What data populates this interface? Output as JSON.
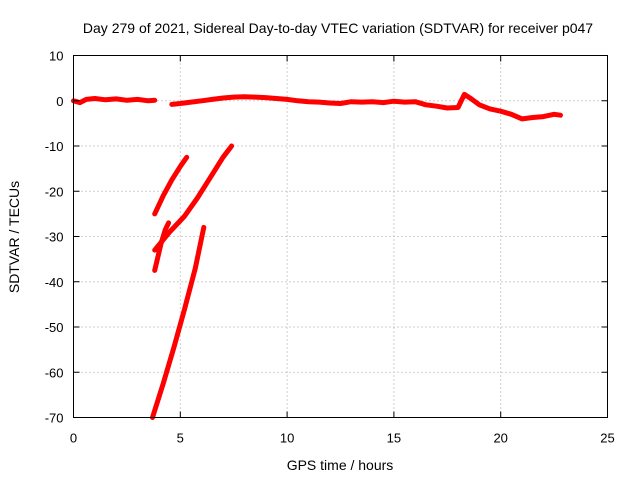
{
  "chart_data": {
    "type": "line",
    "title": "Day 279 of 2021, Sidereal Day-to-day VTEC variation (SDTVAR) for receiver p047",
    "xlabel": "GPS time / hours",
    "ylabel": "SDTVAR / TECUs",
    "xlim": [
      0,
      25
    ],
    "ylim": [
      -70,
      10
    ],
    "xticks": [
      0,
      5,
      10,
      15,
      20,
      25
    ],
    "yticks": [
      10,
      0,
      -10,
      -20,
      -30,
      -40,
      -50,
      -60,
      -70
    ],
    "grid": true,
    "color": "#ff0000",
    "series": [
      {
        "name": "segment-1",
        "x": [
          0,
          0.3,
          0.6,
          1.0,
          1.5,
          2.0,
          2.5,
          3.0,
          3.5,
          3.8
        ],
        "y": [
          0,
          -0.4,
          0.3,
          0.5,
          0.2,
          0.4,
          0.1,
          0.3,
          0.0,
          0.1
        ]
      },
      {
        "name": "segment-2",
        "x": [
          4.6,
          5.0,
          5.5,
          6.0,
          6.5,
          7.0,
          7.5,
          8.0,
          8.5,
          9.0,
          9.5,
          10.0,
          10.5,
          11.0,
          11.5,
          12.0,
          12.5,
          13.0,
          13.5,
          14.0,
          14.5,
          15.0,
          15.5,
          16.0,
          16.5,
          17.0,
          17.5,
          18.0,
          18.3,
          18.6,
          19.0,
          19.5,
          20.0,
          20.5,
          21.0,
          21.5,
          22.0,
          22.5,
          22.8
        ],
        "y": [
          -0.8,
          -0.6,
          -0.3,
          0.0,
          0.3,
          0.6,
          0.8,
          0.9,
          0.8,
          0.7,
          0.5,
          0.3,
          0.0,
          -0.2,
          -0.3,
          -0.5,
          -0.6,
          -0.2,
          -0.3,
          -0.2,
          -0.4,
          -0.1,
          -0.3,
          -0.2,
          -0.9,
          -1.2,
          -1.6,
          -1.5,
          1.4,
          0.5,
          -0.9,
          -1.8,
          -2.3,
          -3.0,
          -4.0,
          -3.7,
          -3.5,
          -3.0,
          -3.2
        ]
      },
      {
        "name": "segment-3",
        "x": [
          3.8,
          4.2,
          4.6,
          5.0,
          5.3
        ],
        "y": [
          -25,
          -21,
          -17.5,
          -14.5,
          -12.5
        ]
      },
      {
        "name": "segment-4",
        "x": [
          3.8,
          4.5,
          5.2,
          5.8,
          6.4,
          7.0,
          7.4
        ],
        "y": [
          -33,
          -29,
          -25.5,
          -21.5,
          -17,
          -12.5,
          -10
        ]
      },
      {
        "name": "segment-5",
        "x": [
          3.8,
          3.95,
          4.1,
          4.3,
          4.45
        ],
        "y": [
          -37.5,
          -34.5,
          -31.5,
          -28.5,
          -27
        ]
      },
      {
        "name": "segment-6",
        "x": [
          3.7,
          4.2,
          4.7,
          5.2,
          5.7,
          6.1
        ],
        "y": [
          -70,
          -62.5,
          -54.5,
          -46,
          -37,
          -28
        ]
      }
    ]
  }
}
